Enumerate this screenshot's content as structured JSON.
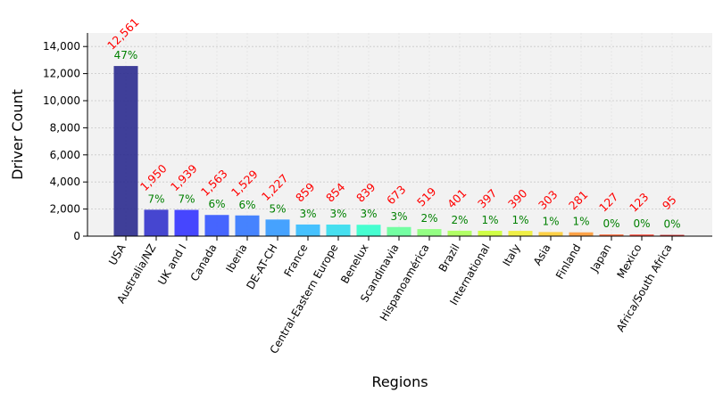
{
  "chart_data": {
    "type": "bar",
    "title": "",
    "xlabel": "Regions",
    "ylabel": "Driver Count",
    "ylim": [
      0,
      15000
    ],
    "yticks": [
      0,
      2000,
      4000,
      6000,
      8000,
      10000,
      12000,
      14000
    ],
    "ytick_labels": [
      "0",
      "2,000",
      "4,000",
      "6,000",
      "8,000",
      "10,000",
      "12,000",
      "14,000"
    ],
    "grid": true,
    "legend": "none",
    "categories": [
      "USA",
      "Australia/NZ",
      "UK and I",
      "Canada",
      "Iberia",
      "DE-AT-CH",
      "France",
      "Central-Eastern Europe",
      "Benelux",
      "Scandinavia",
      "Hispanoamérica",
      "Brazil",
      "International",
      "Italy",
      "Asia",
      "Finland",
      "Japan",
      "Mexico",
      "Africa/South Africa"
    ],
    "values": [
      12561,
      1950,
      1939,
      1563,
      1529,
      1227,
      859,
      854,
      839,
      673,
      519,
      401,
      397,
      390,
      303,
      281,
      127,
      123,
      95
    ],
    "value_labels": [
      "12,561",
      "1,950",
      "1,939",
      "1,563",
      "1,529",
      "1,227",
      "859",
      "854",
      "839",
      "673",
      "519",
      "401",
      "397",
      "390",
      "303",
      "281",
      "127",
      "123",
      "95"
    ],
    "percent_labels": [
      "47%",
      "7%",
      "7%",
      "6%",
      "6%",
      "5%",
      "3%",
      "3%",
      "3%",
      "3%",
      "2%",
      "2%",
      "1%",
      "1%",
      "1%",
      "1%",
      "0%",
      "0%",
      "0%"
    ],
    "colors": [
      "#2b2b8f",
      "#3333cc",
      "#3333ff",
      "#3355ff",
      "#3377ff",
      "#3399ff",
      "#33bbff",
      "#33ddee",
      "#33ffcc",
      "#66ff99",
      "#88ff77",
      "#aaff55",
      "#ccff33",
      "#eeee33",
      "#ffcc33",
      "#ff9933",
      "#ff6633",
      "#ff4433",
      "#cc2222"
    ],
    "value_label_color": "#ff0000",
    "percent_label_color": "#008000",
    "plot_background": "#f2f2f2"
  }
}
